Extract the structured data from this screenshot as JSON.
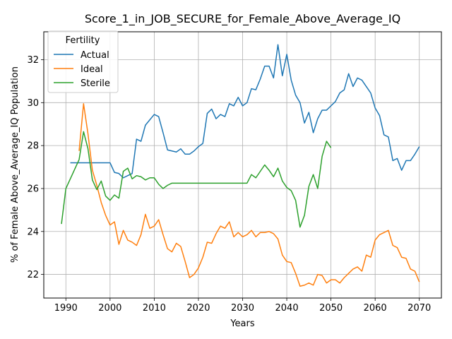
{
  "chart_data": {
    "type": "line",
    "title": "Score_1_in_JOB_SECURE_for_Female_Above_Average_IQ",
    "xlabel": "Years",
    "ylabel": "% of Female Above_Average_IQ Population",
    "xlim": [
      1985,
      2075
    ],
    "ylim": [
      20.9,
      33.3
    ],
    "xticks": [
      1990,
      2000,
      2010,
      2020,
      2030,
      2040,
      2050,
      2060,
      2070
    ],
    "yticks": [
      22,
      24,
      26,
      28,
      30,
      32
    ],
    "grid": true,
    "legend": {
      "title": "Fertility",
      "position": "top-left"
    },
    "series": [
      {
        "name": "Actual",
        "color": "#1f77b4",
        "points": [
          [
            1991,
            27.2
          ],
          [
            1992,
            27.2
          ],
          [
            1993,
            27.2
          ],
          [
            1994,
            27.2
          ],
          [
            1995,
            27.2
          ],
          [
            1996,
            27.2
          ],
          [
            1997,
            27.2
          ],
          [
            1998,
            27.2
          ],
          [
            1999,
            27.2
          ],
          [
            2000,
            27.2
          ],
          [
            2001,
            26.75
          ],
          [
            2002,
            26.7
          ],
          [
            2003,
            26.5
          ],
          [
            2004,
            26.6
          ],
          [
            2005,
            26.7
          ],
          [
            2006,
            28.3
          ],
          [
            2007,
            28.2
          ],
          [
            2008,
            28.95
          ],
          [
            2009,
            29.2
          ],
          [
            2010,
            29.45
          ],
          [
            2011,
            29.35
          ],
          [
            2012,
            28.6
          ],
          [
            2013,
            27.8
          ],
          [
            2014,
            27.75
          ],
          [
            2015,
            27.7
          ],
          [
            2016,
            27.85
          ],
          [
            2017,
            27.6
          ],
          [
            2018,
            27.6
          ],
          [
            2019,
            27.75
          ],
          [
            2020,
            27.95
          ],
          [
            2021,
            28.1
          ],
          [
            2022,
            29.5
          ],
          [
            2023,
            29.7
          ],
          [
            2024,
            29.25
          ],
          [
            2025,
            29.45
          ],
          [
            2026,
            29.35
          ],
          [
            2027,
            29.95
          ],
          [
            2028,
            29.85
          ],
          [
            2029,
            30.25
          ],
          [
            2030,
            29.85
          ],
          [
            2031,
            30.0
          ],
          [
            2032,
            30.65
          ],
          [
            2033,
            30.6
          ],
          [
            2034,
            31.1
          ],
          [
            2035,
            31.7
          ],
          [
            2036,
            31.7
          ],
          [
            2037,
            31.15
          ],
          [
            2038,
            32.7
          ],
          [
            2039,
            31.25
          ],
          [
            2040,
            32.25
          ],
          [
            2041,
            31.05
          ],
          [
            2042,
            30.35
          ],
          [
            2043,
            30.0
          ],
          [
            2044,
            29.05
          ],
          [
            2045,
            29.55
          ],
          [
            2046,
            28.6
          ],
          [
            2047,
            29.25
          ],
          [
            2048,
            29.65
          ],
          [
            2049,
            29.65
          ],
          [
            2050,
            29.85
          ],
          [
            2051,
            30.05
          ],
          [
            2052,
            30.45
          ],
          [
            2053,
            30.6
          ],
          [
            2054,
            31.35
          ],
          [
            2055,
            30.75
          ],
          [
            2056,
            31.15
          ],
          [
            2057,
            31.05
          ],
          [
            2058,
            30.75
          ],
          [
            2059,
            30.45
          ],
          [
            2060,
            29.75
          ],
          [
            2061,
            29.4
          ],
          [
            2062,
            28.5
          ],
          [
            2063,
            28.4
          ],
          [
            2064,
            27.3
          ],
          [
            2065,
            27.4
          ],
          [
            2066,
            26.85
          ],
          [
            2067,
            27.3
          ],
          [
            2068,
            27.3
          ],
          [
            2069,
            27.6
          ],
          [
            2070,
            27.95
          ]
        ]
      },
      {
        "name": "Ideal",
        "color": "#ff7f0e",
        "points": [
          [
            1993,
            27.75
          ],
          [
            1994,
            29.95
          ],
          [
            1995,
            28.55
          ],
          [
            1996,
            26.85
          ],
          [
            1997,
            26.15
          ],
          [
            1998,
            25.35
          ],
          [
            1999,
            24.75
          ],
          [
            2000,
            24.3
          ],
          [
            2001,
            24.45
          ],
          [
            2002,
            23.4
          ],
          [
            2003,
            24.05
          ],
          [
            2004,
            23.6
          ],
          [
            2005,
            23.5
          ],
          [
            2006,
            23.35
          ],
          [
            2007,
            23.85
          ],
          [
            2008,
            24.8
          ],
          [
            2009,
            24.15
          ],
          [
            2010,
            24.25
          ],
          [
            2011,
            24.55
          ],
          [
            2012,
            23.85
          ],
          [
            2013,
            23.2
          ],
          [
            2014,
            23.05
          ],
          [
            2015,
            23.45
          ],
          [
            2016,
            23.3
          ],
          [
            2017,
            22.6
          ],
          [
            2018,
            21.85
          ],
          [
            2019,
            22.0
          ],
          [
            2020,
            22.3
          ],
          [
            2021,
            22.8
          ],
          [
            2022,
            23.5
          ],
          [
            2023,
            23.45
          ],
          [
            2024,
            23.9
          ],
          [
            2025,
            24.25
          ],
          [
            2026,
            24.15
          ],
          [
            2027,
            24.45
          ],
          [
            2028,
            23.75
          ],
          [
            2029,
            23.95
          ],
          [
            2030,
            23.75
          ],
          [
            2031,
            23.85
          ],
          [
            2032,
            24.05
          ],
          [
            2033,
            23.75
          ],
          [
            2034,
            23.95
          ],
          [
            2035,
            23.95
          ],
          [
            2036,
            24.0
          ],
          [
            2037,
            23.9
          ],
          [
            2038,
            23.65
          ],
          [
            2039,
            22.9
          ],
          [
            2040,
            22.6
          ],
          [
            2041,
            22.55
          ],
          [
            2042,
            22.05
          ],
          [
            2043,
            21.45
          ],
          [
            2044,
            21.5
          ],
          [
            2045,
            21.6
          ],
          [
            2046,
            21.5
          ],
          [
            2047,
            22.0
          ],
          [
            2048,
            21.95
          ],
          [
            2049,
            21.6
          ],
          [
            2050,
            21.75
          ],
          [
            2051,
            21.75
          ],
          [
            2052,
            21.6
          ],
          [
            2053,
            21.85
          ],
          [
            2054,
            22.05
          ],
          [
            2055,
            22.25
          ],
          [
            2056,
            22.35
          ],
          [
            2057,
            22.15
          ],
          [
            2058,
            22.9
          ],
          [
            2059,
            22.8
          ],
          [
            2060,
            23.6
          ],
          [
            2061,
            23.85
          ],
          [
            2062,
            23.95
          ],
          [
            2063,
            24.05
          ],
          [
            2064,
            23.35
          ],
          [
            2065,
            23.25
          ],
          [
            2066,
            22.8
          ],
          [
            2067,
            22.75
          ],
          [
            2068,
            22.25
          ],
          [
            2069,
            22.15
          ],
          [
            2070,
            21.65
          ]
        ]
      },
      {
        "name": "Sterile",
        "color": "#2ca02c",
        "points": [
          [
            1989,
            24.35
          ],
          [
            1990,
            26.0
          ],
          [
            1991,
            26.45
          ],
          [
            1992,
            26.9
          ],
          [
            1993,
            27.35
          ],
          [
            1994,
            28.65
          ],
          [
            1995,
            27.85
          ],
          [
            1996,
            26.4
          ],
          [
            1997,
            25.95
          ],
          [
            1998,
            26.35
          ],
          [
            1999,
            25.65
          ],
          [
            2000,
            25.45
          ],
          [
            2001,
            25.7
          ],
          [
            2002,
            25.55
          ],
          [
            2003,
            26.8
          ],
          [
            2004,
            26.95
          ],
          [
            2005,
            26.45
          ],
          [
            2006,
            26.6
          ],
          [
            2007,
            26.55
          ],
          [
            2008,
            26.4
          ],
          [
            2009,
            26.5
          ],
          [
            2010,
            26.5
          ],
          [
            2011,
            26.2
          ],
          [
            2012,
            26.0
          ],
          [
            2013,
            26.15
          ],
          [
            2014,
            26.25
          ],
          [
            2015,
            26.25
          ],
          [
            2016,
            26.25
          ],
          [
            2017,
            26.25
          ],
          [
            2018,
            26.25
          ],
          [
            2019,
            26.25
          ],
          [
            2020,
            26.25
          ],
          [
            2021,
            26.25
          ],
          [
            2022,
            26.25
          ],
          [
            2023,
            26.25
          ],
          [
            2024,
            26.25
          ],
          [
            2025,
            26.25
          ],
          [
            2026,
            26.25
          ],
          [
            2027,
            26.25
          ],
          [
            2028,
            26.25
          ],
          [
            2029,
            26.25
          ],
          [
            2030,
            26.25
          ],
          [
            2031,
            26.25
          ],
          [
            2032,
            26.65
          ],
          [
            2033,
            26.5
          ],
          [
            2034,
            26.8
          ],
          [
            2035,
            27.1
          ],
          [
            2036,
            26.85
          ],
          [
            2037,
            26.55
          ],
          [
            2038,
            26.95
          ],
          [
            2039,
            26.35
          ],
          [
            2040,
            26.05
          ],
          [
            2041,
            25.9
          ],
          [
            2042,
            25.45
          ],
          [
            2043,
            24.2
          ],
          [
            2044,
            24.75
          ],
          [
            2045,
            26.1
          ],
          [
            2046,
            26.65
          ],
          [
            2047,
            26.0
          ],
          [
            2048,
            27.5
          ],
          [
            2049,
            28.2
          ],
          [
            2050,
            27.9
          ]
        ]
      }
    ]
  }
}
